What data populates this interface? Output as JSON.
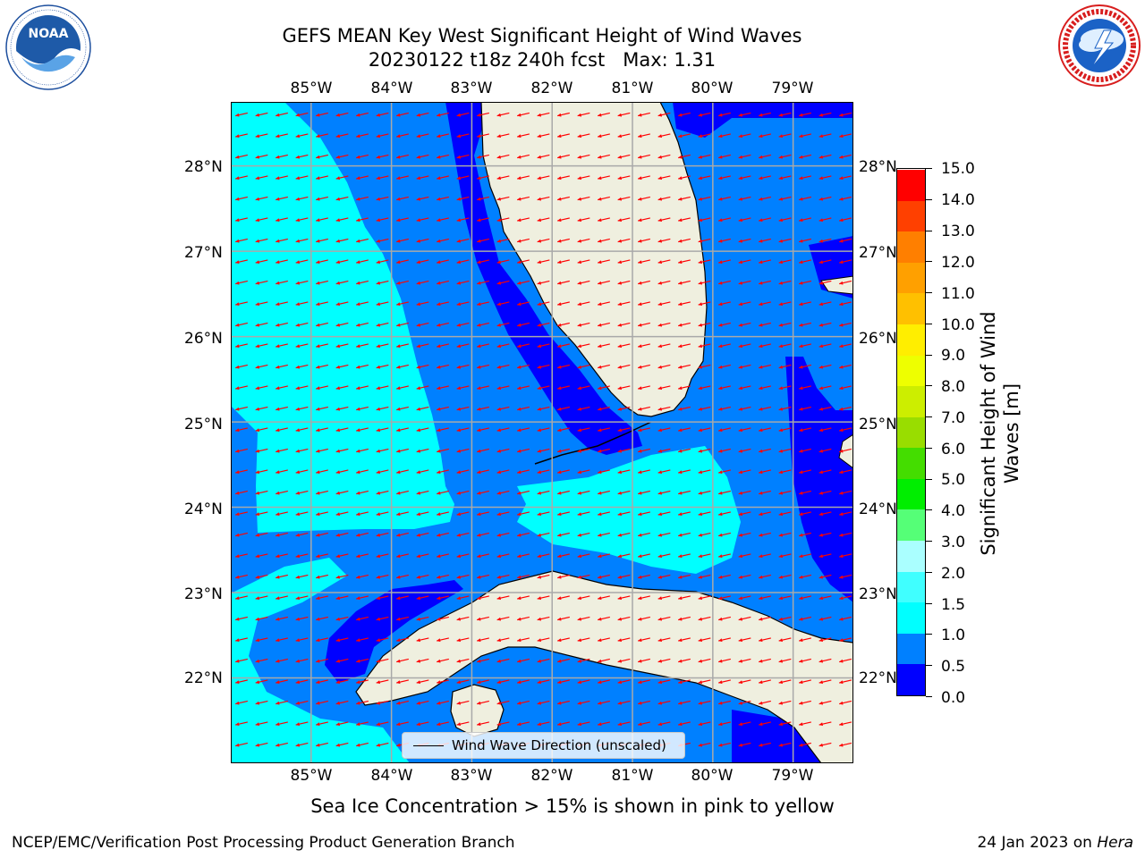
{
  "title": {
    "line1": "GEFS MEAN Key West Significant Height of Wind Waves",
    "line2": "20230122 t18z 240h fcst   Max: 1.31"
  },
  "logos": {
    "left": {
      "name": "NOAA",
      "ring_text": "NATIONAL OCEANIC AND ATMOSPHERIC ADMINISTRATION · U.S. DEPARTMENT OF COMMERCE"
    },
    "right": {
      "name": "NATIONAL WEATHER SERVICE"
    }
  },
  "map": {
    "lon_labels": [
      "85°W",
      "84°W",
      "83°W",
      "82°W",
      "81°W",
      "80°W",
      "79°W"
    ],
    "lat_labels": [
      "28°N",
      "27°N",
      "26°N",
      "25°N",
      "24°N",
      "23°N",
      "22°N"
    ],
    "lon_range": [
      -86.0,
      -78.25
    ],
    "lat_range": [
      21.0,
      28.75
    ],
    "grid": true,
    "land_color": "#efefdf",
    "arrow_color": "#ff0000",
    "legend": {
      "label": "Wind Wave Direction (unscaled)",
      "position": "bottom-center"
    }
  },
  "colorbar": {
    "label": "Significant Height of Wind Waves [m]",
    "tick_labels": [
      "15.0",
      "14.0",
      "13.0",
      "12.0",
      "11.0",
      "10.0",
      "9.0",
      "8.0",
      "7.0",
      "6.0",
      "5.0",
      "4.0",
      "3.0",
      "2.0",
      "1.5",
      "1.0",
      "0.5",
      "0.0"
    ],
    "levels": [
      0,
      0.5,
      1,
      1.5,
      2,
      3,
      4,
      5,
      6,
      7,
      8,
      9,
      10,
      11,
      12,
      13,
      14,
      15
    ],
    "colors": [
      "#0000ff",
      "#0080ff",
      "#00ffff",
      "#40ffff",
      "#aaffff",
      "#55ff77",
      "#00ee00",
      "#44dd00",
      "#99dd00",
      "#ccee00",
      "#eeff00",
      "#ffee00",
      "#ffc000",
      "#ffa000",
      "#ff7f00",
      "#ff4000",
      "#ff0000"
    ]
  },
  "colors": {
    "band_0_05": "#0000ff",
    "band_05_10": "#0080ff",
    "band_10_15": "#00ffff"
  },
  "subtitle": "Sea Ice Concentration > 15% is shown in pink to yellow",
  "footer": {
    "left": "NCEP/EMC/Verification Post Processing Product Generation Branch",
    "right_date": "24 Jan 2023 on ",
    "right_host": "Hera"
  }
}
